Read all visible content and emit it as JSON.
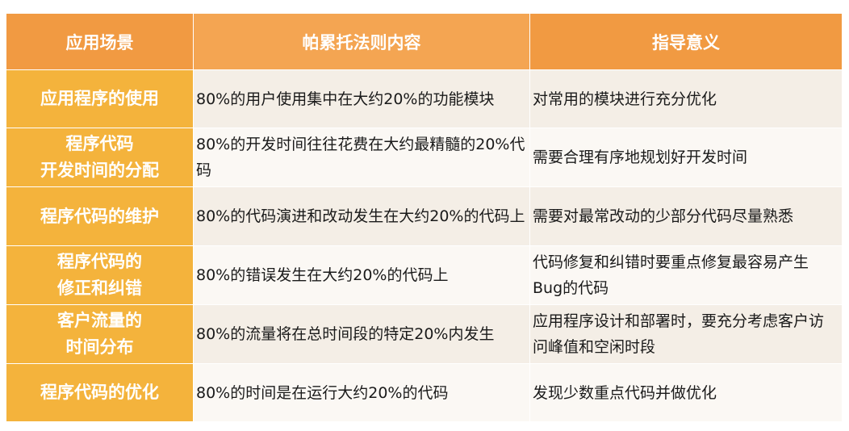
{
  "table": {
    "headers": {
      "scene": "应用场景",
      "rule": "帕累托法则内容",
      "guide": "指导意义"
    },
    "rows": [
      {
        "scene": [
          "应用程序的使用"
        ],
        "rule": "80%的用户使用集中在大约20%的功能模块",
        "guide": "对常用的模块进行充分优化"
      },
      {
        "scene": [
          "程序代码",
          "开发时间的分配"
        ],
        "rule": "80%的开发时间往往花费在大约最精髓的20%代码",
        "guide": "需要合理有序地规划好开发时间"
      },
      {
        "scene": [
          "程序代码的维护"
        ],
        "rule": "80%的代码演进和改动发生在大约20%的代码上",
        "guide": "需要对最常改动的少部分代码尽量熟悉"
      },
      {
        "scene": [
          "程序代码的",
          "修正和纠错"
        ],
        "rule": "80%的错误发生在大约20%的代码上",
        "guide": "代码修复和纠错时要重点修复最容易产生Bug的代码"
      },
      {
        "scene": [
          "客户流量的",
          "时间分布"
        ],
        "rule": "80%的流量将在总时间段的特定20%内发生",
        "guide": "应用程序设计和部署时，要充分考虑客户访问峰值和空闲时段"
      },
      {
        "scene": [
          "程序代码的优化"
        ],
        "rule": "80%的时间是在运行大约20%的代码",
        "guide": "发现少数重点代码并做优化"
      }
    ]
  }
}
